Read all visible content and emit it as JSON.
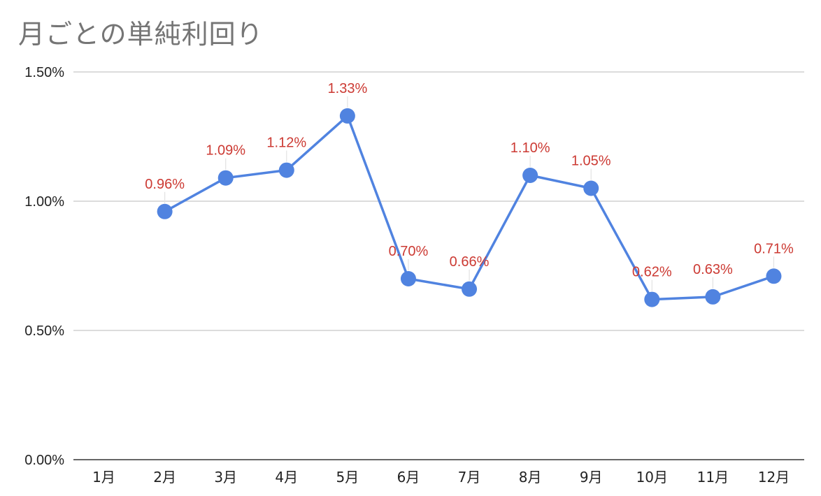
{
  "chart_data": {
    "type": "line",
    "title": "月ごとの単純利回り",
    "xlabel": "",
    "ylabel": "",
    "categories": [
      "1月",
      "2月",
      "3月",
      "4月",
      "5月",
      "6月",
      "7月",
      "8月",
      "9月",
      "10月",
      "11月",
      "12月"
    ],
    "series": [
      {
        "values": [
          null,
          0.96,
          1.09,
          1.12,
          1.33,
          0.7,
          0.66,
          1.1,
          1.05,
          0.62,
          0.63,
          0.71
        ],
        "labels": [
          "",
          "0.96%",
          "1.09%",
          "1.12%",
          "1.33%",
          "0.70%",
          "0.66%",
          "1.10%",
          "1.05%",
          "0.62%",
          "0.63%",
          "0.71%"
        ]
      }
    ],
    "ylim": [
      0,
      1.5
    ],
    "yticks": [
      0,
      0.5,
      1.0,
      1.5
    ],
    "ytick_labels": [
      "0.00%",
      "0.50%",
      "1.00%",
      "1.50%"
    ],
    "grid": true,
    "legend": "none",
    "colors": {
      "line": "#5083E0",
      "marker": "#5083E0",
      "data_label": "#CC3A33",
      "grid": "#C8C8C8",
      "axis": "#333333",
      "title": "#757575"
    }
  }
}
